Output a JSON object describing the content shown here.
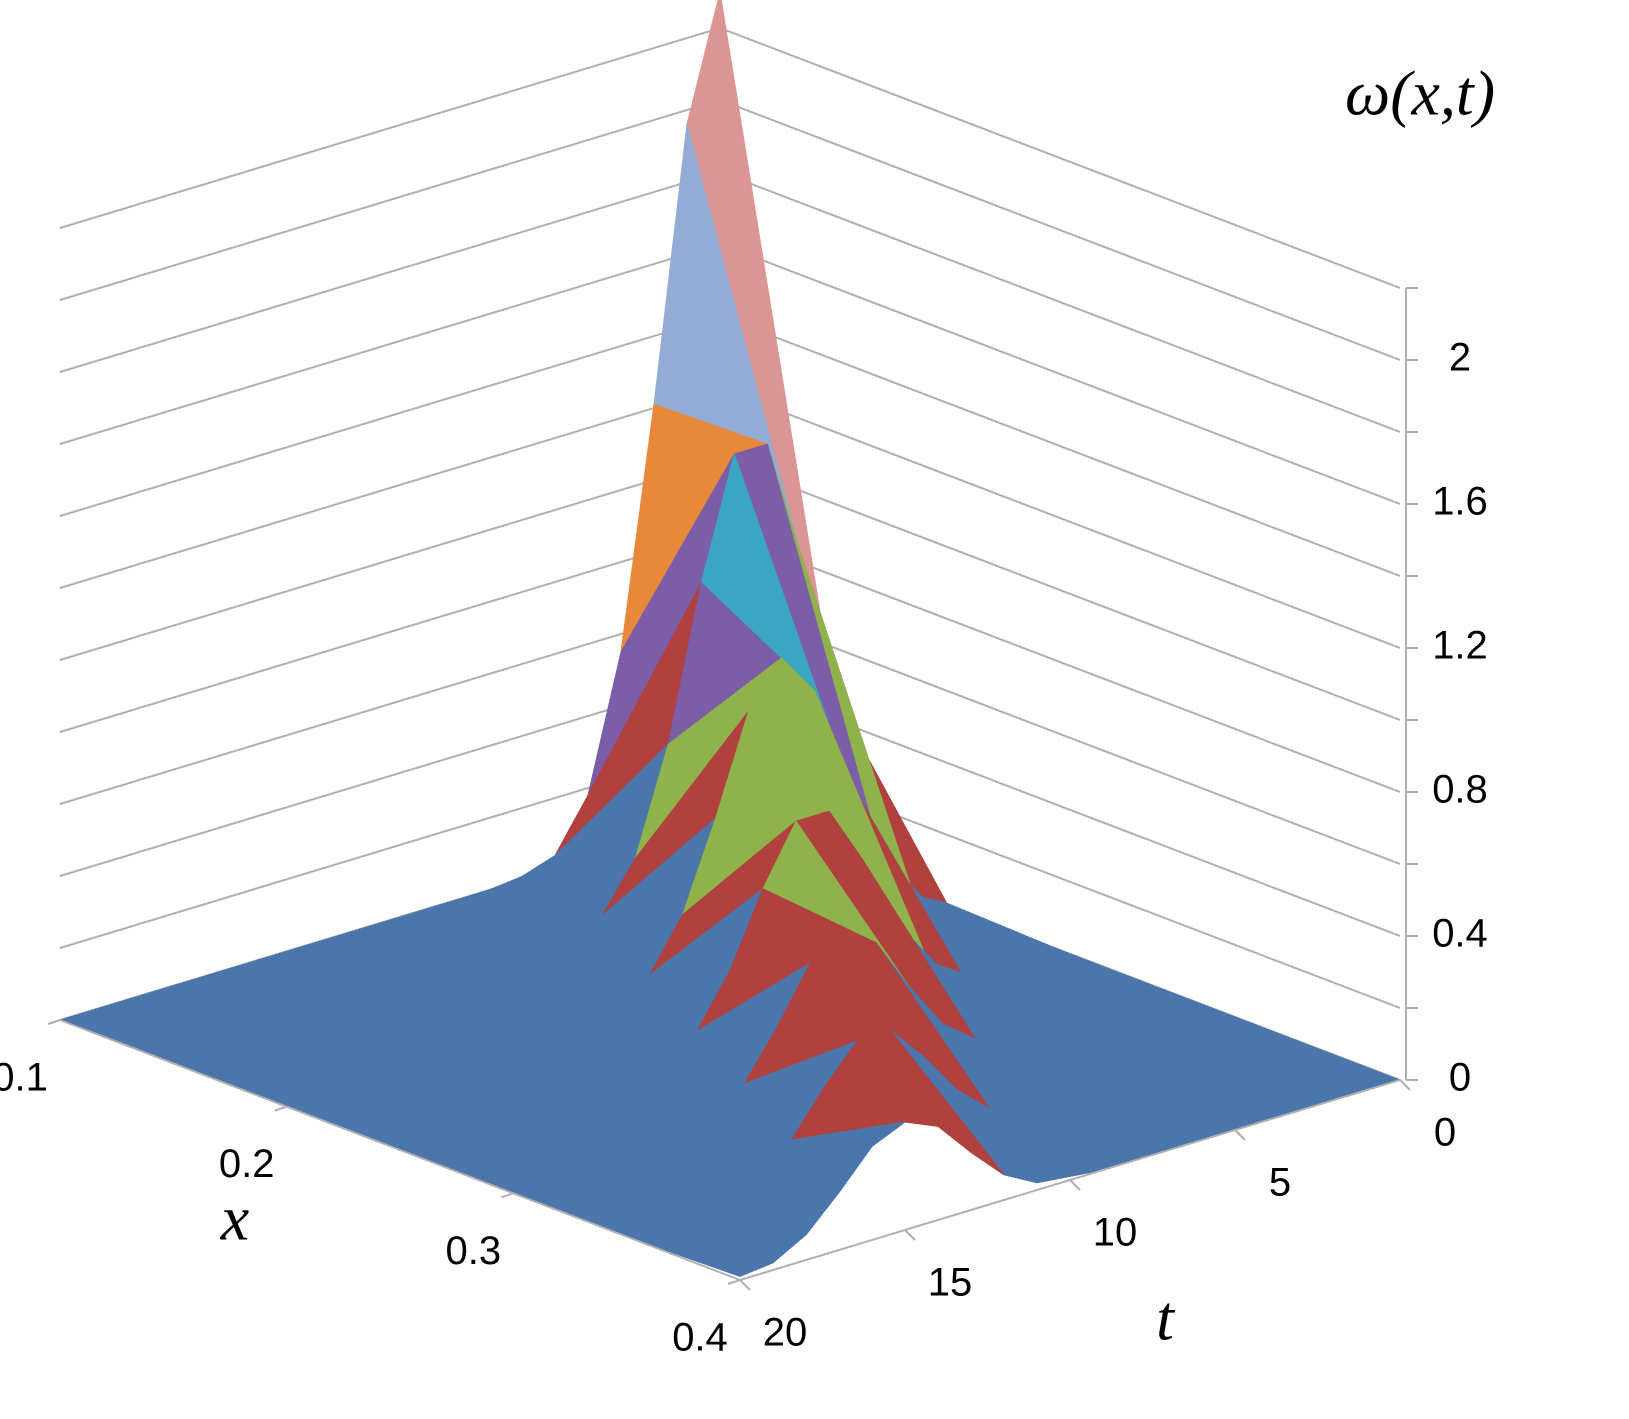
{
  "chart_data": {
    "type": "surface",
    "zlabel": "ω(x,t)",
    "xlabel": "x",
    "tlabel": "t",
    "x": [
      0.1,
      0.15,
      0.2,
      0.25,
      0.3,
      0.35,
      0.4
    ],
    "t": [
      0,
      1,
      2,
      3,
      4,
      5,
      6,
      7,
      8,
      9,
      10,
      11,
      12,
      13,
      14,
      15,
      16,
      17,
      18,
      19,
      20
    ],
    "values": [
      [
        2.3,
        1.96,
        1.21,
        0.55,
        0.18,
        0.04,
        0.01,
        0,
        0,
        0,
        0,
        0,
        0,
        0,
        0,
        0,
        0,
        0,
        0,
        0,
        0
      ],
      [
        0.47,
        0.89,
        1.22,
        1.22,
        0.89,
        0.47,
        0.18,
        0.05,
        0.01,
        0,
        0,
        0,
        0,
        0,
        0,
        0,
        0,
        0,
        0,
        0,
        0
      ],
      [
        0.01,
        0.06,
        0.2,
        0.44,
        0.71,
        0.83,
        0.71,
        0.44,
        0.2,
        0.06,
        0.01,
        0,
        0,
        0,
        0,
        0,
        0,
        0,
        0,
        0,
        0
      ],
      [
        0,
        0,
        0,
        0.02,
        0.08,
        0.22,
        0.42,
        0.58,
        0.58,
        0.42,
        0.22,
        0.08,
        0.02,
        0,
        0,
        0,
        0,
        0,
        0,
        0,
        0
      ],
      [
        0,
        0,
        0,
        0,
        0,
        0.01,
        0.04,
        0.11,
        0.24,
        0.39,
        0.46,
        0.39,
        0.24,
        0.11,
        0.04,
        0.01,
        0,
        0,
        0,
        0,
        0
      ],
      [
        0,
        0,
        0,
        0,
        0,
        0,
        0,
        0,
        0.01,
        0.05,
        0.13,
        0.25,
        0.35,
        0.35,
        0.25,
        0.13,
        0.05,
        0.01,
        0,
        0,
        0
      ],
      [
        0,
        0,
        0,
        0,
        0,
        0,
        0,
        0,
        0,
        0,
        0.01,
        0.02,
        0.07,
        0.16,
        0.26,
        0.3,
        0.26,
        0.16,
        0.07,
        0.02,
        0.01
      ]
    ],
    "xlim": [
      0.1,
      0.4
    ],
    "tlim": [
      0,
      20
    ],
    "zlim": [
      0,
      2.2
    ],
    "xticks": [
      0.1,
      0.2,
      0.3,
      0.4
    ],
    "tticks": [
      0,
      5,
      10,
      15,
      20
    ],
    "zticks": [
      0,
      0.4,
      0.8,
      1.2,
      1.6,
      2
    ],
    "zminor_ticks": [
      0.2,
      0.6,
      1,
      1.4,
      1.8,
      2.2
    ],
    "band_colors": [
      "#4a76ab",
      "#b0413e",
      "#8fb34a",
      "#7b5ea7",
      "#3aa6c4",
      "#e8883a",
      "#93acd6",
      "#d99694",
      "#b8d28a",
      "#b3a2c7",
      "#9bbbd9",
      "#7fb3d5"
    ]
  }
}
